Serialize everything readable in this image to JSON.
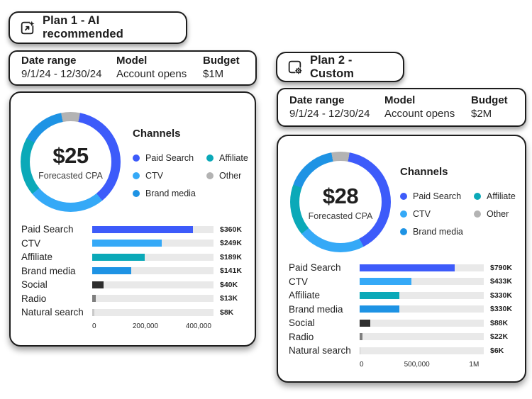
{
  "plan1": {
    "title": "Plan 1 - AI recommended",
    "meta": [
      {
        "label": "Date range",
        "value": "9/1/24 - 12/30/24"
      },
      {
        "label": "Model",
        "value": "Account opens"
      },
      {
        "label": "Budget",
        "value": "$1M"
      }
    ],
    "legend_title": "Channels"
  },
  "plan2": {
    "title": "Plan 2 - Custom",
    "meta": [
      {
        "label": "Date range",
        "value": "9/1/24 - 12/30/24"
      },
      {
        "label": "Model",
        "value": "Account opens"
      },
      {
        "label": "Budget",
        "value": "$2M"
      }
    ],
    "legend_title": "Channels"
  },
  "colors": {
    "paid_search": "#3d5bfa",
    "ctv": "#35a9f7",
    "affiliate": "#0ba9b8",
    "brand_media": "#1e93e4",
    "other": "#b3b3b3",
    "social": "#2e2e2e",
    "radio": "#7e7e7e",
    "natural_search": "#c9c9c9",
    "track": "#e9e9e9"
  },
  "chart_data": [
    {
      "plan": "plan1",
      "type": "pie",
      "title": "Plan 1 channel mix",
      "center_value": "$25",
      "center_label": "Forecasted CPA",
      "slices": [
        {
          "label": "Paid Search",
          "value": 360000,
          "color": "#3d5bfa"
        },
        {
          "label": "CTV",
          "value": 249000,
          "color": "#35a9f7"
        },
        {
          "label": "Affiliate",
          "value": 189000,
          "color": "#0ba9b8"
        },
        {
          "label": "Brand media",
          "value": 141000,
          "color": "#1e93e4"
        },
        {
          "label": "Other",
          "value": 61000,
          "color": "#b3b3b3"
        }
      ],
      "legend_columns": [
        [
          "Paid Search",
          "CTV",
          "Brand media"
        ],
        [
          "Affiliate",
          "Other"
        ]
      ],
      "legend_position": "right"
    },
    {
      "plan": "plan1",
      "type": "bar",
      "title": "Plan 1 budget by channel",
      "categories": [
        "Paid Search",
        "CTV",
        "Affiliate",
        "Brand media",
        "Social",
        "Radio",
        "Natural search"
      ],
      "values": [
        360000,
        249000,
        189000,
        141000,
        40000,
        13000,
        8000
      ],
      "value_labels": [
        "$360K",
        "$249K",
        "$189K",
        "$141K",
        "$40K",
        "$13K",
        "$8K"
      ],
      "bar_colors": [
        "#3d5bfa",
        "#35a9f7",
        "#0ba9b8",
        "#1e93e4",
        "#2e2e2e",
        "#7e7e7e",
        "#c9c9c9"
      ],
      "xlabel": "",
      "ylabel": "",
      "axis": {
        "max": 435000,
        "ticks": [
          {
            "label": "0",
            "value": 0
          },
          {
            "label": "200,000",
            "value": 200000
          },
          {
            "label": "400,000",
            "value": 400000
          }
        ]
      },
      "grid": false
    },
    {
      "plan": "plan2",
      "type": "pie",
      "title": "Plan 2 channel mix",
      "center_value": "$28",
      "center_label": "Forecasted CPA",
      "slices": [
        {
          "label": "Paid Search",
          "value": 790000,
          "color": "#3d5bfa"
        },
        {
          "label": "CTV",
          "value": 433000,
          "color": "#35a9f7"
        },
        {
          "label": "Affiliate",
          "value": 330000,
          "color": "#0ba9b8"
        },
        {
          "label": "Brand media",
          "value": 330000,
          "color": "#1e93e4"
        },
        {
          "label": "Other",
          "value": 116000,
          "color": "#b3b3b3"
        }
      ],
      "legend_columns": [
        [
          "Paid Search",
          "CTV",
          "Brand media"
        ],
        [
          "Affiliate",
          "Other"
        ]
      ],
      "legend_position": "right"
    },
    {
      "plan": "plan2",
      "type": "bar",
      "title": "Plan 2 budget by channel",
      "categories": [
        "Paid Search",
        "CTV",
        "Affiliate",
        "Brand media",
        "Social",
        "Radio",
        "Natural search"
      ],
      "values": [
        790000,
        433000,
        330000,
        330000,
        88000,
        22000,
        6000
      ],
      "value_labels": [
        "$790K",
        "$433K",
        "$330K",
        "$330K",
        "$88K",
        "$22K",
        "$6K"
      ],
      "bar_colors": [
        "#3d5bfa",
        "#35a9f7",
        "#0ba9b8",
        "#1e93e4",
        "#2e2e2e",
        "#7e7e7e",
        "#c9c9c9"
      ],
      "xlabel": "",
      "ylabel": "",
      "axis": {
        "max": 1035000,
        "ticks": [
          {
            "label": "0",
            "value": 0
          },
          {
            "label": "500,000",
            "value": 500000
          },
          {
            "label": "1M",
            "value": 1000000
          }
        ]
      },
      "grid": false
    }
  ]
}
